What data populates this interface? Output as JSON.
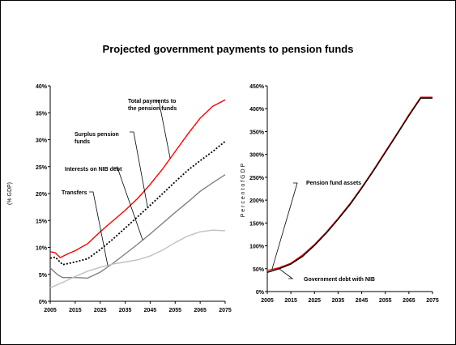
{
  "title": "Projected government payments to pension funds",
  "chart_data": [
    {
      "type": "line",
      "ylabel": "(% GDP)",
      "ylim": [
        0,
        40
      ],
      "yticks": [
        "0%",
        "5%",
        "10%",
        "15%",
        "20%",
        "25%",
        "30%",
        "35%",
        "40%"
      ],
      "xlim": [
        2005,
        2075
      ],
      "xticks": [
        "2005",
        "2015",
        "2025",
        "2035",
        "2045",
        "2055",
        "2065",
        "2075"
      ],
      "series": [
        {
          "name": "Total payments to the pension funds",
          "color": "#ff0000",
          "style": "solid",
          "x": [
            2005,
            2007,
            2009,
            2012,
            2015,
            2020,
            2025,
            2030,
            2035,
            2040,
            2045,
            2050,
            2055,
            2060,
            2065,
            2070,
            2075
          ],
          "y": [
            9.2,
            9.0,
            8.1,
            8.8,
            9.4,
            10.7,
            12.9,
            14.9,
            16.9,
            19.1,
            21.7,
            24.6,
            27.8,
            31.0,
            34.0,
            36.2,
            37.4
          ]
        },
        {
          "name": "Surplus pension funds",
          "color": "#000000",
          "style": "dotted",
          "x": [
            2005,
            2007,
            2010,
            2015,
            2020,
            2025,
            2030,
            2035,
            2040,
            2045,
            2050,
            2055,
            2060,
            2065,
            2070,
            2075
          ],
          "y": [
            8.0,
            8.2,
            6.8,
            7.3,
            7.9,
            9.6,
            11.5,
            13.6,
            15.7,
            17.8,
            20.0,
            22.2,
            24.3,
            26.1,
            27.8,
            29.7
          ]
        },
        {
          "name": "Interests on NIB debt",
          "color": "#808080",
          "style": "solid",
          "x": [
            2005,
            2008,
            2010,
            2015,
            2020,
            2025,
            2030,
            2035,
            2040,
            2045,
            2050,
            2055,
            2060,
            2065,
            2070,
            2075
          ],
          "y": [
            6.2,
            4.9,
            4.4,
            4.4,
            4.3,
            5.4,
            7.0,
            8.8,
            10.6,
            12.5,
            14.5,
            16.5,
            18.4,
            20.4,
            22.0,
            23.5
          ]
        },
        {
          "name": "Transfers",
          "color": "#c0c0c0",
          "style": "solid",
          "x": [
            2005,
            2010,
            2015,
            2020,
            2025,
            2030,
            2035,
            2040,
            2045,
            2050,
            2055,
            2060,
            2065,
            2070,
            2075
          ],
          "y": [
            2.5,
            3.5,
            4.6,
            5.6,
            6.3,
            6.9,
            7.3,
            7.7,
            8.4,
            9.5,
            10.9,
            12.1,
            12.9,
            13.2,
            13.1
          ]
        }
      ]
    },
    {
      "type": "line",
      "ylabel": "P e r c e n t  o f  G D P",
      "ylim": [
        0,
        450
      ],
      "yticks": [
        "0%",
        "50%",
        "100%",
        "150%",
        "200%",
        "250%",
        "300%",
        "350%",
        "400%",
        "450%"
      ],
      "xlim": [
        2005,
        2075
      ],
      "xticks": [
        "2005",
        "2015",
        "2025",
        "2035",
        "2045",
        "2055",
        "2065",
        "2075"
      ],
      "series": [
        {
          "name": "Pension fund assets",
          "color": "#ff0000",
          "style": "solid",
          "x": [
            2005,
            2010,
            2015,
            2020,
            2025,
            2030,
            2035,
            2040,
            2045,
            2050,
            2055,
            2060,
            2065,
            2070,
            2075
          ],
          "y": [
            46,
            52,
            62,
            80,
            103,
            130,
            160,
            192,
            228,
            266,
            306,
            346,
            387,
            425,
            425
          ]
        },
        {
          "name": "Government debt with NIB",
          "color": "#000000",
          "style": "solid",
          "x": [
            2005,
            2010,
            2015,
            2020,
            2025,
            2030,
            2035,
            2040,
            2045,
            2050,
            2055,
            2060,
            2065,
            2070,
            2075
          ],
          "y": [
            42,
            50,
            60,
            77,
            101,
            128,
            158,
            190,
            226,
            264,
            304,
            344,
            385,
            423,
            423
          ]
        }
      ]
    }
  ]
}
